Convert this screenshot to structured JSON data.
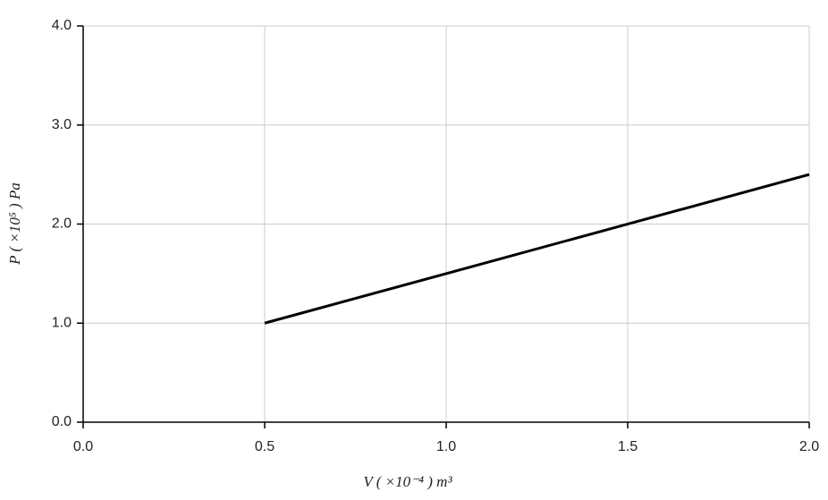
{
  "chart_data": {
    "type": "line",
    "x_label": "V ( ×10⁻⁴ ) m³",
    "y_label": "P ( ×10⁵ ) Pa",
    "x": [
      0.5,
      2.0
    ],
    "series": [
      {
        "color": "#000000",
        "values": [
          1.0,
          2.5
        ]
      }
    ],
    "xlim": [
      0,
      2.0
    ],
    "ylim": [
      0,
      4.0
    ],
    "xticks": [
      {
        "value": 0,
        "label": "0.0"
      },
      {
        "value": 0.5,
        "label": "0.5"
      },
      {
        "value": 1,
        "label": "1.0"
      },
      {
        "value": 1.5,
        "label": "1.5"
      },
      {
        "value": 2,
        "label": "2.0"
      }
    ],
    "yticks": [
      {
        "value": 0,
        "label": "0.0"
      },
      {
        "value": 1,
        "label": "1.0"
      },
      {
        "value": 2,
        "label": "2.0"
      },
      {
        "value": 3,
        "label": "3.0"
      },
      {
        "value": 4,
        "label": "4.0"
      }
    ],
    "grid": true
  }
}
